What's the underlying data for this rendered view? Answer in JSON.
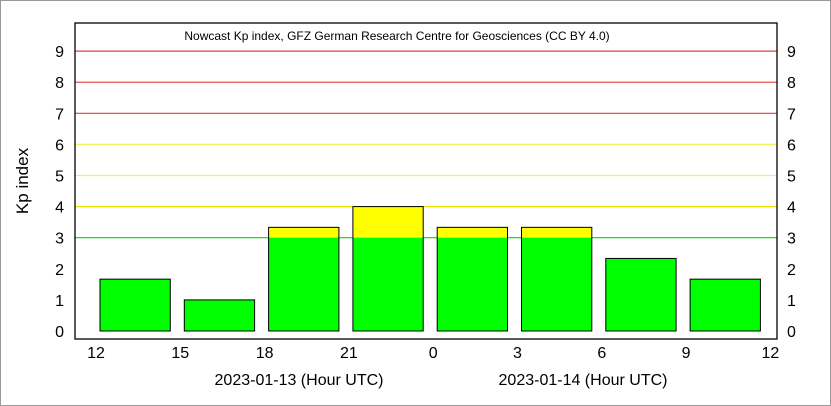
{
  "chart_data": {
    "type": "bar",
    "title": "Nowcast Kp index, GFZ German Research Centre for Geosciences (CC BY 4.0)",
    "ylabel": "Kp index",
    "ylim": [
      0,
      9.5
    ],
    "y_ticks": [
      "0",
      "1",
      "2",
      "3",
      "4",
      "5",
      "6",
      "7",
      "8",
      "9"
    ],
    "x_ticks": [
      {
        "hour": 0,
        "label": "12"
      },
      {
        "hour": 3,
        "label": "15"
      },
      {
        "hour": 6,
        "label": "18"
      },
      {
        "hour": 9,
        "label": "21"
      },
      {
        "hour": 12,
        "label": "0"
      },
      {
        "hour": 15,
        "label": "3"
      },
      {
        "hour": 18,
        "label": "6"
      },
      {
        "hour": 21,
        "label": "9"
      },
      {
        "hour": 24,
        "label": "12"
      }
    ],
    "x_date_labels": [
      "2023-01-13 (Hour UTC)",
      "2023-01-14 (Hour UTC)"
    ],
    "bars": [
      {
        "start": "2023-01-13 12:00",
        "value": 1.667
      },
      {
        "start": "2023-01-13 15:00",
        "value": 1.0
      },
      {
        "start": "2023-01-13 18:00",
        "value": 3.333
      },
      {
        "start": "2023-01-13 21:00",
        "value": 4.0
      },
      {
        "start": "2023-01-14 00:00",
        "value": 3.333
      },
      {
        "start": "2023-01-14 03:00",
        "value": 3.333
      },
      {
        "start": "2023-01-14 06:00",
        "value": 2.333
      },
      {
        "start": "2023-01-14 09:00",
        "value": 1.667
      }
    ],
    "thresholds": [
      {
        "from": 0,
        "to": 3,
        "color": "#00ff00"
      },
      {
        "from": 3,
        "to": 5,
        "color": "#ffff00"
      },
      {
        "from": 5,
        "to": 9.5,
        "color": "#ff0000"
      }
    ],
    "gridlines": [
      {
        "value": 3,
        "color": "#00dd00"
      },
      {
        "value": 4,
        "color": "#e8e800"
      },
      {
        "value": 5,
        "color": "#f0f060"
      },
      {
        "value": 6,
        "color": "#f0f060"
      },
      {
        "value": 7,
        "color": "#e04040"
      },
      {
        "value": 8,
        "color": "#e04040"
      },
      {
        "value": 9,
        "color": "#e04040"
      }
    ],
    "grid": true
  }
}
